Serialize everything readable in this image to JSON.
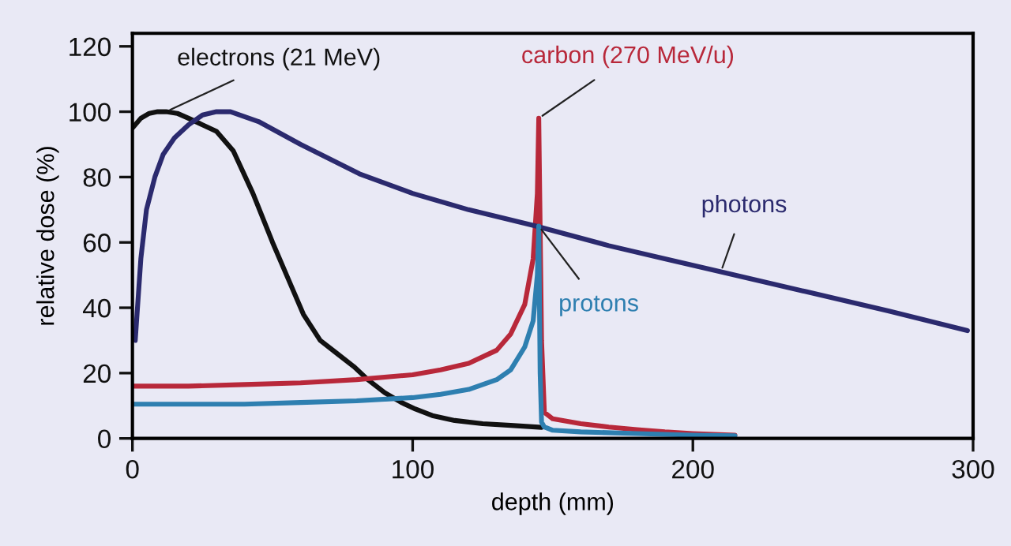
{
  "chart_data": {
    "type": "line",
    "xlabel": "depth (mm)",
    "ylabel": "relative dose (%)",
    "xlim": [
      0,
      300
    ],
    "xticks": [
      0,
      100,
      200,
      300
    ],
    "ylim": [
      0,
      124
    ],
    "yticks": [
      0,
      20,
      40,
      60,
      80,
      100,
      120
    ],
    "grid": false,
    "legend": false,
    "marker": "none",
    "line_style": "solid",
    "series": [
      {
        "name": "electrons (21 MeV)",
        "color": "#111111",
        "x": [
          0,
          3,
          6,
          9,
          12,
          16,
          20,
          25,
          30,
          36,
          43,
          50,
          56,
          61,
          67,
          73,
          79,
          84,
          90,
          96,
          101,
          107,
          115,
          125,
          135,
          146
        ],
        "values": [
          95,
          98,
          99.5,
          100,
          100,
          99.5,
          98,
          96,
          94,
          88,
          75,
          60,
          48,
          38,
          30,
          26,
          22,
          18,
          14,
          11,
          9,
          7,
          5.5,
          4.5,
          4,
          3.4
        ]
      },
      {
        "name": "carbon (270 MeV/u)",
        "color": "#b8283a",
        "x": [
          0,
          20,
          40,
          60,
          80,
          100,
          110,
          120,
          130,
          135,
          140,
          143,
          144.5,
          145,
          146,
          147,
          150,
          160,
          170,
          180,
          190,
          200,
          215
        ],
        "values": [
          16,
          16,
          16.5,
          17,
          18,
          19.5,
          21,
          23,
          27,
          32,
          41,
          55,
          75,
          98,
          30,
          8,
          6,
          4.5,
          3.5,
          2.7,
          2,
          1.5,
          1
        ]
      },
      {
        "name": "photons",
        "color": "#2b2a6e",
        "x": [
          1,
          3,
          5,
          8,
          11,
          15,
          20,
          25,
          30,
          35,
          45,
          60,
          81,
          100,
          120,
          144,
          170,
          190,
          210,
          240,
          270,
          298
        ],
        "values": [
          30,
          55,
          70,
          80,
          87,
          92,
          96,
          99,
          100,
          100,
          97,
          90,
          81,
          75,
          70,
          65,
          59,
          55,
          51,
          45,
          39,
          33
        ]
      },
      {
        "name": "protons",
        "color": "#2e7fb0",
        "x": [
          0,
          20,
          40,
          60,
          80,
          100,
          110,
          120,
          130,
          135,
          140,
          143,
          144.5,
          145,
          145.5,
          146,
          147,
          150,
          160,
          180,
          200,
          215
        ],
        "values": [
          10.5,
          10.5,
          10.5,
          11,
          11.5,
          12.5,
          13.5,
          15,
          18,
          21,
          28,
          36,
          50,
          65,
          20,
          5,
          3.5,
          2.5,
          2,
          1.5,
          1,
          0.8
        ]
      }
    ]
  }
}
